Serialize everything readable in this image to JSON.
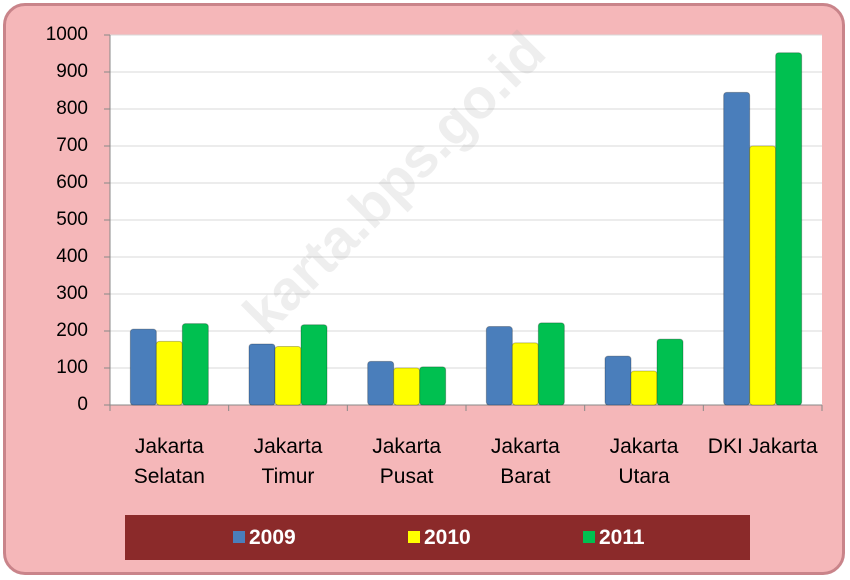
{
  "chart_data": {
    "type": "bar",
    "categories": [
      "Jakarta\nSelatan",
      "Jakarta\nTimur",
      "Jakarta\nPusat",
      "Jakarta\nBarat",
      "Jakarta\nUtara",
      "DKI Jakarta"
    ],
    "series": [
      {
        "name": "2009",
        "color": "#4a7ebb",
        "values": [
          205,
          165,
          118,
          212,
          132,
          845
        ]
      },
      {
        "name": "2010",
        "color": "#ffff00",
        "values": [
          172,
          158,
          100,
          168,
          92,
          700
        ]
      },
      {
        "name": "2011",
        "color": "#00c050",
        "values": [
          220,
          217,
          103,
          222,
          178,
          952
        ]
      }
    ],
    "ylim": [
      0,
      1000
    ],
    "yticks": [
      0,
      100,
      200,
      300,
      400,
      500,
      600,
      700,
      800,
      900,
      1000
    ],
    "grid": true,
    "legend": "bottom",
    "watermark": "karta.bps.go.id"
  }
}
